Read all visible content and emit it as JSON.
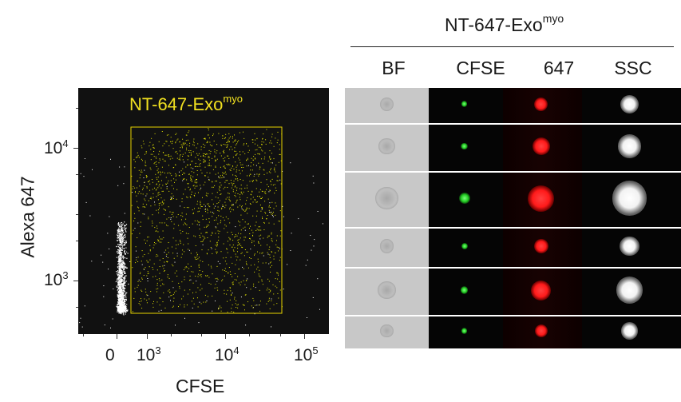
{
  "panel_title": {
    "main": "NT-647-Exo",
    "sup": "myo"
  },
  "columns": [
    "BF",
    "CFSE",
    "647",
    "SSC"
  ],
  "scatter": {
    "gate_label": {
      "main": "NT-647-Exo",
      "sup": "myo"
    },
    "x_axis_title": "CFSE",
    "y_axis_title": "Alexa 647",
    "x_ticks": [
      {
        "base": "0",
        "exp": ""
      },
      {
        "base": "10",
        "exp": "3"
      },
      {
        "base": "10",
        "exp": "4"
      },
      {
        "base": "10",
        "exp": "5"
      }
    ],
    "y_ticks": [
      {
        "base": "10",
        "exp": "3"
      },
      {
        "base": "10",
        "exp": "4"
      }
    ],
    "colors": {
      "background": "#111111",
      "ungated": "#ffffff",
      "gated": "#e6e600",
      "gate_outline": "#e6d400"
    }
  },
  "cell_rows": 6,
  "channel_colors": {
    "BF": "#c8c8c8",
    "CFSE": "#22cc22",
    "647": "#ff1a1a",
    "SSC": "#ffffff"
  }
}
